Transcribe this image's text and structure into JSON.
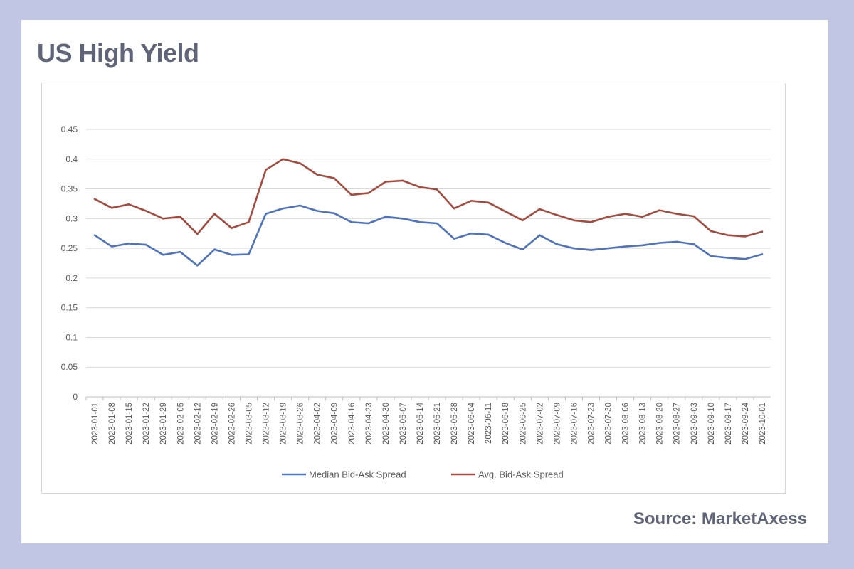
{
  "title": "US High Yield",
  "source": "Source: MarketAxess",
  "chart_data": {
    "type": "line",
    "x": [
      "2023-01-01",
      "2023-01-08",
      "2023-01-15",
      "2023-01-22",
      "2023-01-29",
      "2023-02-05",
      "2023-02-12",
      "2023-02-19",
      "2023-02-26",
      "2023-03-05",
      "2023-03-12",
      "2023-03-19",
      "2023-03-26",
      "2023-04-02",
      "2023-04-09",
      "2023-04-16",
      "2023-04-23",
      "2023-04-30",
      "2023-05-07",
      "2023-05-14",
      "2023-05-21",
      "2023-05-28",
      "2023-06-04",
      "2023-06-11",
      "2023-06-18",
      "2023-06-25",
      "2023-07-02",
      "2023-07-09",
      "2023-07-16",
      "2023-07-23",
      "2023-07-30",
      "2023-08-06",
      "2023-08-13",
      "2023-08-20",
      "2023-08-27",
      "2023-09-03",
      "2023-09-10",
      "2023-09-17",
      "2023-09-24",
      "2023-10-01"
    ],
    "series": [
      {
        "name": "Median Bid-Ask Spread",
        "color": "#4f72be",
        "values": [
          0.272,
          0.253,
          0.258,
          0.256,
          0.239,
          0.244,
          0.221,
          0.248,
          0.239,
          0.24,
          0.308,
          0.317,
          0.322,
          0.313,
          0.309,
          0.294,
          0.292,
          0.303,
          0.3,
          0.294,
          0.292,
          0.266,
          0.275,
          0.273,
          0.259,
          0.248,
          0.272,
          0.257,
          0.25,
          0.247,
          0.25,
          0.253,
          0.255,
          0.259,
          0.261,
          0.257,
          0.237,
          0.234,
          0.232,
          0.24
        ]
      },
      {
        "name": "Avg. Bid-Ask Spread",
        "color": "#a54a3e",
        "values": [
          0.333,
          0.318,
          0.324,
          0.313,
          0.3,
          0.303,
          0.274,
          0.308,
          0.284,
          0.294,
          0.382,
          0.4,
          0.393,
          0.374,
          0.368,
          0.34,
          0.343,
          0.362,
          0.364,
          0.353,
          0.349,
          0.317,
          0.33,
          0.327,
          0.312,
          0.297,
          0.316,
          0.306,
          0.297,
          0.294,
          0.303,
          0.308,
          0.303,
          0.314,
          0.308,
          0.304,
          0.279,
          0.272,
          0.27,
          0.278
        ]
      }
    ],
    "y_ticks": [
      "0",
      "0.05",
      "0.1",
      "0.15",
      "0.2",
      "0.25",
      "0.3",
      "0.35",
      "0.4",
      "0.45"
    ],
    "ylim": [
      0,
      0.45
    ],
    "grid": true,
    "legend_position": "bottom"
  }
}
